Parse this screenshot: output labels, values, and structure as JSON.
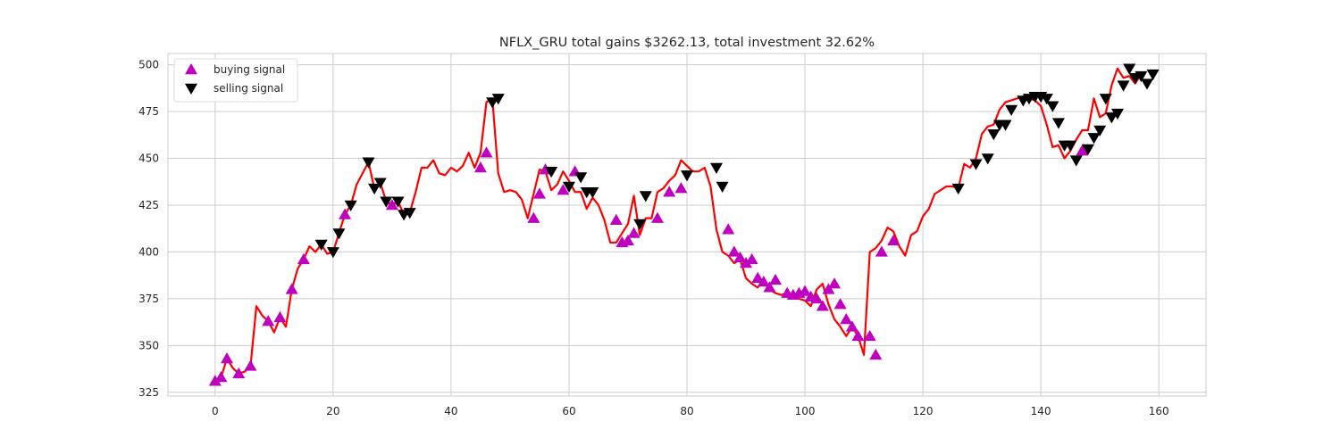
{
  "chart_data": {
    "type": "line",
    "title": "NFLX_GRU total gains $3262.13, total investment 32.62%",
    "xlabel": "",
    "ylabel": "",
    "xlim": [
      -8,
      168
    ],
    "ylim": [
      323,
      506
    ],
    "x_ticks": [
      0,
      20,
      40,
      60,
      80,
      100,
      120,
      140,
      160
    ],
    "y_ticks": [
      325,
      350,
      375,
      400,
      425,
      450,
      475,
      500
    ],
    "grid": true,
    "legend_position": "top-left",
    "colors": {
      "line": "#ff0000",
      "buy": "#bf00bf",
      "sell": "#000000",
      "grid": "#cccccc",
      "frame": "#cccccc"
    },
    "legend": [
      {
        "label": "buying signal",
        "marker": "triangle-up"
      },
      {
        "label": "selling signal",
        "marker": "triangle-down"
      }
    ],
    "series": [
      {
        "name": "",
        "values": [
          331,
          333,
          343,
          338,
          335,
          336,
          339,
          371,
          366,
          363,
          357,
          365,
          360,
          380,
          391,
          396,
          403,
          400,
          404,
          399,
          400,
          410,
          420,
          425,
          436,
          442,
          448,
          434,
          437,
          427,
          425,
          427,
          420,
          421,
          432,
          445,
          445,
          449,
          442,
          441,
          445,
          443,
          446,
          453,
          445,
          453,
          480,
          482,
          442,
          432,
          433,
          432,
          428,
          418,
          431,
          444,
          443,
          433,
          436,
          443,
          438,
          432,
          432,
          423,
          429,
          425,
          417,
          405,
          405,
          410,
          415,
          430,
          409,
          418,
          418,
          432,
          434,
          438,
          441,
          449,
          446,
          443,
          443,
          445,
          435,
          412,
          400,
          398,
          394,
          396,
          386,
          383,
          381,
          385,
          380,
          378,
          377,
          378,
          377,
          375,
          374,
          371,
          380,
          383,
          372,
          364,
          360,
          355,
          360,
          355,
          345,
          400,
          402,
          406,
          413,
          411,
          403,
          398,
          409,
          411,
          419,
          423,
          431,
          433,
          435,
          435,
          434,
          447,
          445,
          450,
          463,
          467,
          468,
          476,
          480,
          481,
          482,
          483,
          482,
          481,
          478,
          468,
          456,
          457,
          450,
          454,
          460,
          465,
          465,
          482,
          472,
          474,
          489,
          498,
          493,
          494,
          490,
          495
        ]
      }
    ],
    "buy_signals": [
      {
        "x": 0,
        "y": 331
      },
      {
        "x": 1,
        "y": 333
      },
      {
        "x": 2,
        "y": 343
      },
      {
        "x": 4,
        "y": 335
      },
      {
        "x": 6,
        "y": 339
      },
      {
        "x": 9,
        "y": 363
      },
      {
        "x": 11,
        "y": 365
      },
      {
        "x": 13,
        "y": 380
      },
      {
        "x": 15,
        "y": 396
      },
      {
        "x": 22,
        "y": 420
      },
      {
        "x": 30,
        "y": 425
      },
      {
        "x": 45,
        "y": 445
      },
      {
        "x": 46,
        "y": 453
      },
      {
        "x": 54,
        "y": 418
      },
      {
        "x": 55,
        "y": 431
      },
      {
        "x": 56,
        "y": 444
      },
      {
        "x": 59,
        "y": 433
      },
      {
        "x": 61,
        "y": 443
      },
      {
        "x": 68,
        "y": 417
      },
      {
        "x": 69,
        "y": 405
      },
      {
        "x": 70,
        "y": 406
      },
      {
        "x": 71,
        "y": 410
      },
      {
        "x": 75,
        "y": 418
      },
      {
        "x": 77,
        "y": 432
      },
      {
        "x": 79,
        "y": 434
      },
      {
        "x": 87,
        "y": 412
      },
      {
        "x": 88,
        "y": 400
      },
      {
        "x": 89,
        "y": 397
      },
      {
        "x": 90,
        "y": 394
      },
      {
        "x": 91,
        "y": 396
      },
      {
        "x": 92,
        "y": 386
      },
      {
        "x": 93,
        "y": 384
      },
      {
        "x": 94,
        "y": 381
      },
      {
        "x": 95,
        "y": 385
      },
      {
        "x": 97,
        "y": 378
      },
      {
        "x": 98,
        "y": 377
      },
      {
        "x": 99,
        "y": 378
      },
      {
        "x": 100,
        "y": 379
      },
      {
        "x": 101,
        "y": 376
      },
      {
        "x": 102,
        "y": 375
      },
      {
        "x": 103,
        "y": 371
      },
      {
        "x": 104,
        "y": 380
      },
      {
        "x": 105,
        "y": 383
      },
      {
        "x": 106,
        "y": 372
      },
      {
        "x": 107,
        "y": 364
      },
      {
        "x": 108,
        "y": 360
      },
      {
        "x": 109,
        "y": 355
      },
      {
        "x": 111,
        "y": 355
      },
      {
        "x": 112,
        "y": 345
      },
      {
        "x": 113,
        "y": 400
      },
      {
        "x": 115,
        "y": 406
      },
      {
        "x": 147,
        "y": 454
      }
    ],
    "sell_signals": [
      {
        "x": 18,
        "y": 404
      },
      {
        "x": 20,
        "y": 400
      },
      {
        "x": 21,
        "y": 410
      },
      {
        "x": 23,
        "y": 425
      },
      {
        "x": 26,
        "y": 448
      },
      {
        "x": 27,
        "y": 434
      },
      {
        "x": 28,
        "y": 437
      },
      {
        "x": 29,
        "y": 427
      },
      {
        "x": 31,
        "y": 427
      },
      {
        "x": 32,
        "y": 420
      },
      {
        "x": 33,
        "y": 421
      },
      {
        "x": 47,
        "y": 480
      },
      {
        "x": 48,
        "y": 482
      },
      {
        "x": 57,
        "y": 443
      },
      {
        "x": 60,
        "y": 435
      },
      {
        "x": 62,
        "y": 440
      },
      {
        "x": 63,
        "y": 432
      },
      {
        "x": 64,
        "y": 432
      },
      {
        "x": 72,
        "y": 415
      },
      {
        "x": 73,
        "y": 430
      },
      {
        "x": 80,
        "y": 441
      },
      {
        "x": 85,
        "y": 445
      },
      {
        "x": 86,
        "y": 435
      },
      {
        "x": 126,
        "y": 434
      },
      {
        "x": 129,
        "y": 447
      },
      {
        "x": 131,
        "y": 450
      },
      {
        "x": 132,
        "y": 463
      },
      {
        "x": 133,
        "y": 468
      },
      {
        "x": 134,
        "y": 468
      },
      {
        "x": 135,
        "y": 476
      },
      {
        "x": 137,
        "y": 481
      },
      {
        "x": 138,
        "y": 482
      },
      {
        "x": 139,
        "y": 483
      },
      {
        "x": 140,
        "y": 483
      },
      {
        "x": 141,
        "y": 482
      },
      {
        "x": 142,
        "y": 478
      },
      {
        "x": 143,
        "y": 469
      },
      {
        "x": 144,
        "y": 457
      },
      {
        "x": 145,
        "y": 457
      },
      {
        "x": 146,
        "y": 449
      },
      {
        "x": 148,
        "y": 455
      },
      {
        "x": 149,
        "y": 461
      },
      {
        "x": 150,
        "y": 465
      },
      {
        "x": 151,
        "y": 482
      },
      {
        "x": 152,
        "y": 472
      },
      {
        "x": 153,
        "y": 474
      },
      {
        "x": 154,
        "y": 489
      },
      {
        "x": 155,
        "y": 498
      },
      {
        "x": 156,
        "y": 493
      },
      {
        "x": 157,
        "y": 494
      },
      {
        "x": 158,
        "y": 490
      },
      {
        "x": 159,
        "y": 495
      }
    ]
  }
}
